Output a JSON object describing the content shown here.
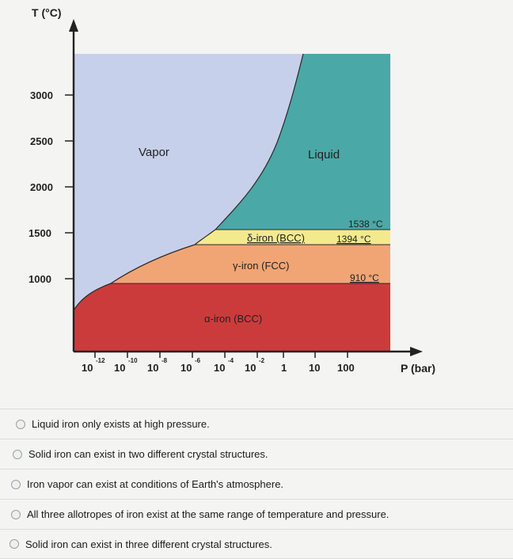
{
  "chart_data": {
    "type": "phase-diagram",
    "xlabel": "P (bar)",
    "ylabel": "T (°C)",
    "x_scale": "log",
    "x_ticks": [
      {
        "base": "10",
        "exp": "-12"
      },
      {
        "base": "10",
        "exp": "-10"
      },
      {
        "base": "10",
        "exp": "-8"
      },
      {
        "base": "10",
        "exp": "-6"
      },
      {
        "base": "10",
        "exp": "-4"
      },
      {
        "base": "10",
        "exp": "-2"
      },
      {
        "base": "1",
        "exp": ""
      },
      {
        "base": "10",
        "exp": ""
      },
      {
        "base": "100",
        "exp": ""
      }
    ],
    "y_ticks": [
      "3000",
      "2500",
      "2000",
      "1500",
      "1000"
    ],
    "regions": [
      {
        "label": "Vapor",
        "color": "#c7d0ea"
      },
      {
        "label": "Liquid",
        "color": "#4aa8a6"
      },
      {
        "label": "δ-iron (BCC)",
        "color": "#f3ea8e"
      },
      {
        "label": "γ-iron (FCC)",
        "color": "#f1a574"
      },
      {
        "label": "α-iron (BCC)",
        "color": "#cc3b3b"
      }
    ],
    "annotations": [
      "1538 °C",
      "1394 °C",
      "910 °C"
    ]
  },
  "options": [
    {
      "label": "Liquid iron only exists at high pressure."
    },
    {
      "label": "Solid iron can exist in two different crystal structures."
    },
    {
      "label": "Iron vapor can exist at conditions of Earth's atmosphere."
    },
    {
      "label": "All three allotropes of iron exist at the same range of temperature and pressure."
    },
    {
      "label": "Solid iron can exist in three different crystal structures."
    }
  ]
}
